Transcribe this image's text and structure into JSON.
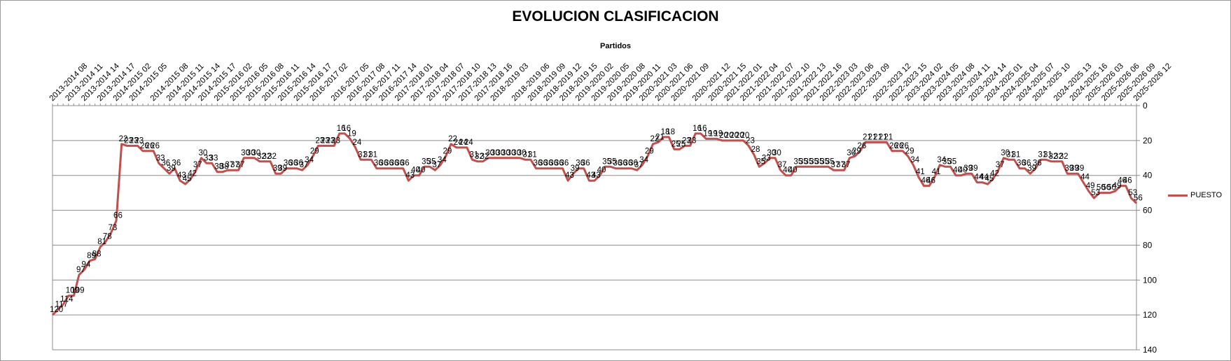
{
  "chart_data": {
    "type": "line",
    "title": "EVOLUCION CLASIFICACION",
    "xlabel": "Partidos",
    "ylabel": "",
    "ylim": [
      0,
      140
    ],
    "y_reversed": true,
    "y_ticks": [
      "0",
      "20",
      "40",
      "60",
      "80",
      "100",
      "120",
      "140"
    ],
    "grid": "horizontal",
    "legend_position": "right",
    "line_color": "#c0504d",
    "x_tick_labels": [
      "2013-2014 08",
      "2013-2014 11",
      "2013-2014 14",
      "2013-2014 17",
      "2014-2015 02",
      "2014-2015 05",
      "2014-2015 08",
      "2014-2015 11",
      "2014-2015 14",
      "2014-2015 17",
      "2015-2016 02",
      "2015-2016 05",
      "2015-2016 08",
      "2015-2016 11",
      "2015-2016 14",
      "2015-2016 17",
      "2016-2017 02",
      "2016-2017 05",
      "2016-2017 08",
      "2016-2017 11",
      "2016-2017 14",
      "2017-2018 01",
      "2017-2018 04",
      "2017-2018 07",
      "2017-2018 10",
      "2017-2018 13",
      "2017-2018 16",
      "2018-2019 03",
      "2018-2019 06",
      "2018-2019 09",
      "2018-2019 12",
      "2018-2019 15",
      "2019-2020 02",
      "2019-2020 05",
      "2019-2020 08",
      "2019-2020 11",
      "2020-2021 03",
      "2020-2021 06",
      "2020-2021 09",
      "2020-2021 12",
      "2020-2021 15",
      "2021-2022 01",
      "2021-2022 04",
      "2021-2022 07",
      "2021-2022 10",
      "2021-2022 13",
      "2021-2022 16",
      "2022-2023 03",
      "2022-2023 06",
      "2022-2023 09",
      "2022-2023 12",
      "2022-2023 15",
      "2023-2024 02",
      "2023-2024 05",
      "2023-2024 08",
      "2023-2024 11",
      "2023-2024 14",
      "2024-2025 01",
      "2024-2025 04",
      "2024-2025 07",
      "2024-2025 10",
      "2024-2025 13",
      "2024-2025 16",
      "2025-2026 03",
      "2025-2026 06",
      "2025-2026 09",
      "2025-2026 12"
    ],
    "series": [
      {
        "name": "PUESTO",
        "values": [
          120,
          117,
          114,
          109,
          109,
          97,
          94,
          89,
          88,
          81,
          78,
          73,
          66,
          22,
          23,
          23,
          23,
          26,
          26,
          26,
          33,
          36,
          39,
          36,
          43,
          45,
          42,
          37,
          30,
          33,
          33,
          38,
          38,
          37,
          37,
          37,
          30,
          30,
          30,
          32,
          32,
          32,
          39,
          39,
          36,
          36,
          36,
          37,
          34,
          29,
          23,
          23,
          23,
          23,
          16,
          16,
          19,
          24,
          31,
          31,
          31,
          36,
          36,
          36,
          36,
          36,
          36,
          43,
          40,
          40,
          35,
          35,
          37,
          34,
          29,
          22,
          24,
          24,
          24,
          31,
          32,
          32,
          30,
          30,
          30,
          30,
          30,
          30,
          30,
          31,
          31,
          36,
          36,
          36,
          36,
          36,
          36,
          43,
          39,
          36,
          36,
          43,
          43,
          40,
          35,
          35,
          36,
          36,
          36,
          36,
          37,
          34,
          29,
          22,
          21,
          18,
          18,
          25,
          25,
          23,
          23,
          16,
          16,
          19,
          19,
          19,
          20,
          20,
          20,
          20,
          20,
          23,
          28,
          35,
          33,
          30,
          30,
          37,
          40,
          40,
          35,
          35,
          35,
          35,
          35,
          35,
          35,
          37,
          37,
          37,
          30,
          29,
          26,
          21,
          21,
          21,
          21,
          21,
          26,
          26,
          26,
          29,
          34,
          41,
          46,
          46,
          41,
          34,
          35,
          35,
          40,
          40,
          39,
          39,
          44,
          44,
          45,
          42,
          37,
          30,
          31,
          31,
          36,
          36,
          39,
          36,
          31,
          31,
          32,
          32,
          32,
          39,
          39,
          39,
          44,
          49,
          53,
          50,
          50,
          50,
          49,
          46,
          46,
          53,
          56
        ]
      }
    ]
  }
}
